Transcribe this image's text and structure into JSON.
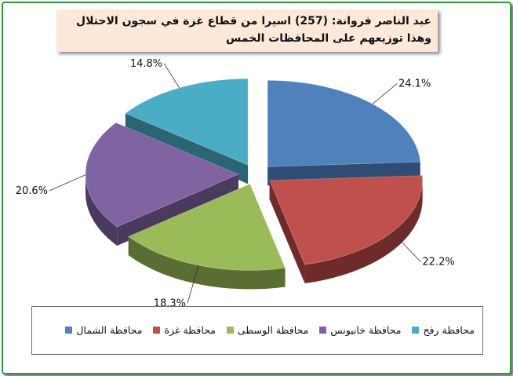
{
  "chart_data": {
    "type": "pie",
    "title_lines": [
      "عبد الناصر فروانة: (257) اسيرا من قطاع غزة في سجون الاحتلال",
      "وهذا توزيعهم على المحافظات الخمس"
    ],
    "categories": [
      "محافظة الشمال",
      "محافظة غزة",
      "محافظة الوسطى",
      "محافظة خانيونس",
      "محافظة رفح"
    ],
    "values": [
      24.1,
      22.2,
      18.3,
      20.6,
      14.8
    ],
    "labels": [
      "24.1%",
      "22.2%",
      "18.3%",
      "20.6%",
      "14.8%"
    ],
    "colors": [
      "#4f81bd",
      "#c0504d",
      "#9bbb59",
      "#8064a2",
      "#4bacc6"
    ],
    "side_colors": [
      "#2f4d72",
      "#6e2b2a",
      "#5a6d33",
      "#4a3a5e",
      "#2b6473"
    ],
    "legend_placement": "bottom",
    "style": "exploded-3d"
  }
}
